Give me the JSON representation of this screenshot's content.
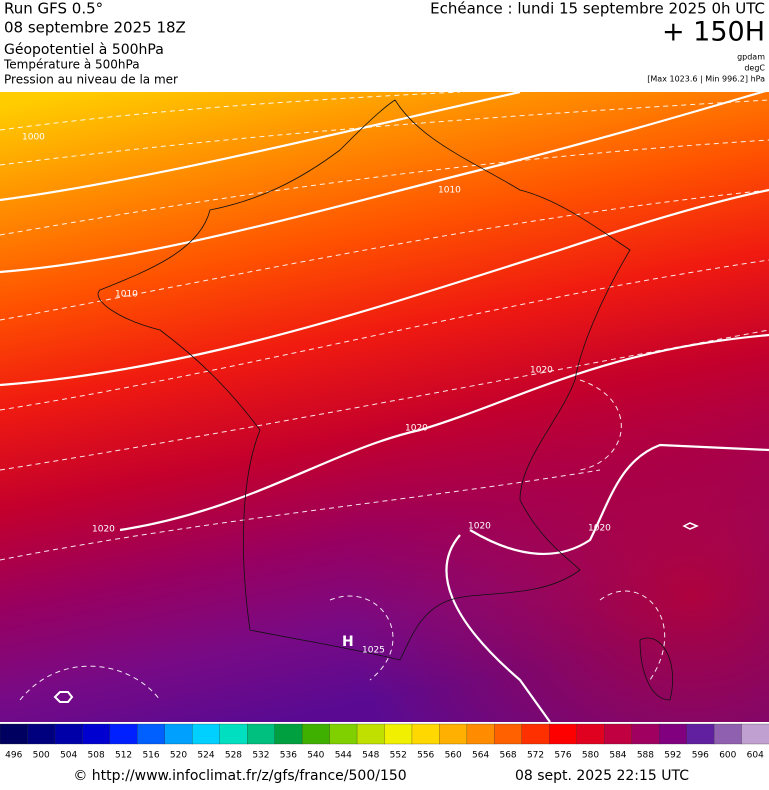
{
  "header": {
    "model": "Run GFS 0.5°",
    "run": "08 septembre 2025 18Z",
    "field1": "Géopotentiel à 500hPa",
    "field2": "Température à 500hPa",
    "field3": "Pression au niveau de la mer",
    "valid": "Echéance : lundi 15 septembre 2025 0h UTC",
    "lead": "+ 150H",
    "unit1": "gpdam",
    "unit2": "degC",
    "range": "[Max 1023.6 | Min 996.2] hPa"
  },
  "map": {
    "contour_labels": [
      "1000",
      "1010",
      "1010",
      "1020",
      "1020",
      "1020",
      "1020",
      "1020",
      "1025"
    ],
    "high_marker": "H"
  },
  "colorbar": {
    "labels": [
      "496",
      "500",
      "504",
      "508",
      "512",
      "516",
      "520",
      "524",
      "528",
      "532",
      "536",
      "540",
      "544",
      "548",
      "552",
      "556",
      "560",
      "564",
      "568",
      "572",
      "576",
      "580",
      "584",
      "588",
      "592",
      "596",
      "600",
      "604"
    ],
    "colors": [
      "#000060",
      "#00007f",
      "#0000a8",
      "#0000d0",
      "#0020ff",
      "#0060ff",
      "#00a0ff",
      "#00d0ff",
      "#00e0c0",
      "#00c080",
      "#00a040",
      "#40b000",
      "#80d000",
      "#c0e000",
      "#f0f000",
      "#ffd800",
      "#ffb000",
      "#ff8c00",
      "#ff6000",
      "#ff3000",
      "#ff0000",
      "#e00020",
      "#c00040",
      "#a00060",
      "#800080",
      "#6020a0",
      "#9060b0",
      "#c0a0d0"
    ]
  },
  "footer": {
    "url": "© http://www.infoclimat.fr/z/gfs/france/500/150",
    "generated": "08 sept. 2025 22:15 UTC"
  }
}
